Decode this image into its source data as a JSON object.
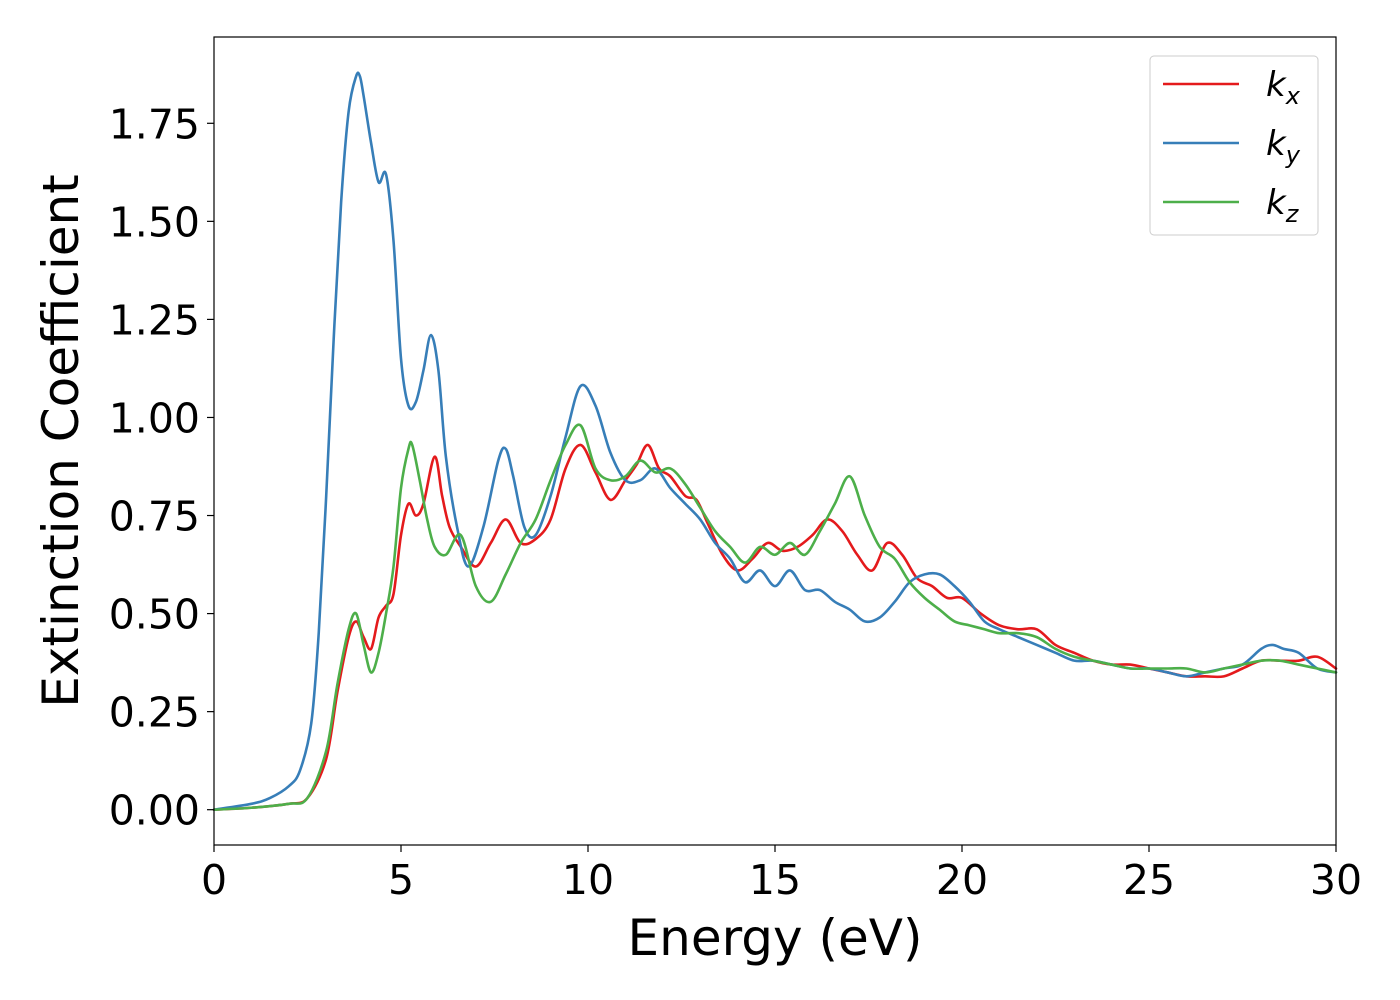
{
  "chart_data": {
    "type": "line",
    "title": "",
    "xlabel": "Energy (eV)",
    "ylabel": "Extinction Coefficient",
    "xlim": [
      0,
      30
    ],
    "ylim": [
      -0.09,
      1.97
    ],
    "xticks": [
      0,
      5,
      10,
      15,
      20,
      25,
      30
    ],
    "xtick_labels": [
      "0",
      "5",
      "10",
      "15",
      "20",
      "25",
      "30"
    ],
    "yticks": [
      0,
      0.25,
      0.5,
      0.75,
      1.0,
      1.25,
      1.5,
      1.75
    ],
    "ytick_labels": [
      "0.00",
      "0.25",
      "0.50",
      "0.75",
      "1.00",
      "1.25",
      "1.50",
      "1.75"
    ],
    "grid": false,
    "legend_position": "top-right",
    "series": [
      {
        "name": "k_x",
        "legend_base": "k",
        "legend_sub": "x",
        "color": "#e41a1c",
        "x": [
          0,
          1,
          2,
          2.5,
          3,
          3.3,
          3.6,
          3.8,
          4.0,
          4.2,
          4.4,
          4.6,
          4.8,
          5.0,
          5.2,
          5.4,
          5.6,
          5.9,
          6.1,
          6.3,
          6.6,
          7.0,
          7.4,
          7.8,
          8.2,
          8.6,
          9.0,
          9.4,
          9.8,
          10.2,
          10.6,
          11.0,
          11.3,
          11.6,
          11.9,
          12.2,
          12.6,
          12.9,
          13.2,
          13.6,
          14.0,
          14.4,
          14.8,
          15.2,
          15.6,
          16.0,
          16.4,
          16.8,
          17.2,
          17.6,
          18.0,
          18.4,
          18.8,
          19.2,
          19.6,
          20.0,
          20.5,
          21.0,
          21.5,
          22.0,
          22.5,
          23.0,
          23.5,
          24.0,
          24.5,
          25.0,
          25.5,
          26.0,
          26.5,
          27.0,
          27.5,
          28.0,
          28.5,
          29.0,
          29.5,
          30.0
        ],
        "y": [
          0,
          0.005,
          0.015,
          0.03,
          0.13,
          0.3,
          0.44,
          0.48,
          0.44,
          0.41,
          0.49,
          0.52,
          0.55,
          0.7,
          0.78,
          0.75,
          0.78,
          0.9,
          0.8,
          0.72,
          0.67,
          0.62,
          0.68,
          0.74,
          0.68,
          0.69,
          0.74,
          0.87,
          0.93,
          0.86,
          0.79,
          0.84,
          0.88,
          0.93,
          0.87,
          0.85,
          0.8,
          0.79,
          0.73,
          0.65,
          0.61,
          0.64,
          0.68,
          0.66,
          0.67,
          0.7,
          0.74,
          0.71,
          0.65,
          0.61,
          0.68,
          0.65,
          0.59,
          0.57,
          0.54,
          0.54,
          0.5,
          0.47,
          0.46,
          0.46,
          0.42,
          0.4,
          0.38,
          0.37,
          0.37,
          0.36,
          0.35,
          0.34,
          0.34,
          0.34,
          0.36,
          0.38,
          0.38,
          0.38,
          0.39,
          0.36
        ]
      },
      {
        "name": "k_y",
        "legend_base": "k",
        "legend_sub": "y",
        "color": "#377eb8",
        "x": [
          0,
          1,
          1.5,
          2,
          2.3,
          2.6,
          2.8,
          3.0,
          3.2,
          3.4,
          3.6,
          3.8,
          3.9,
          4.0,
          4.2,
          4.4,
          4.6,
          4.8,
          5.0,
          5.2,
          5.4,
          5.6,
          5.8,
          6.0,
          6.2,
          6.5,
          6.8,
          7.2,
          7.6,
          7.8,
          8.0,
          8.3,
          8.6,
          9.0,
          9.4,
          9.8,
          10.2,
          10.6,
          11.0,
          11.4,
          11.8,
          12.2,
          12.6,
          13.0,
          13.4,
          13.8,
          14.2,
          14.6,
          15.0,
          15.4,
          15.8,
          16.2,
          16.6,
          17.0,
          17.4,
          17.8,
          18.2,
          18.6,
          19.0,
          19.4,
          19.8,
          20.2,
          20.6,
          21.0,
          21.5,
          22.0,
          22.5,
          23.0,
          23.5,
          24.0,
          24.5,
          25.0,
          25.5,
          26.0,
          26.5,
          27.0,
          27.5,
          28.0,
          28.3,
          28.6,
          29.0,
          29.5,
          30.0
        ],
        "y": [
          0,
          0.015,
          0.03,
          0.06,
          0.1,
          0.22,
          0.45,
          0.8,
          1.2,
          1.55,
          1.78,
          1.87,
          1.87,
          1.82,
          1.7,
          1.6,
          1.62,
          1.45,
          1.15,
          1.03,
          1.04,
          1.12,
          1.21,
          1.12,
          0.9,
          0.72,
          0.62,
          0.72,
          0.89,
          0.92,
          0.85,
          0.72,
          0.7,
          0.8,
          0.95,
          1.08,
          1.03,
          0.91,
          0.84,
          0.84,
          0.87,
          0.82,
          0.78,
          0.74,
          0.68,
          0.64,
          0.58,
          0.61,
          0.57,
          0.61,
          0.56,
          0.56,
          0.53,
          0.51,
          0.48,
          0.49,
          0.53,
          0.58,
          0.6,
          0.6,
          0.57,
          0.53,
          0.48,
          0.46,
          0.44,
          0.42,
          0.4,
          0.38,
          0.38,
          0.37,
          0.36,
          0.36,
          0.35,
          0.34,
          0.35,
          0.36,
          0.37,
          0.41,
          0.42,
          0.41,
          0.4,
          0.36,
          0.35
        ]
      },
      {
        "name": "k_z",
        "legend_base": "k",
        "legend_sub": "z",
        "color": "#4daf4a",
        "x": [
          0,
          1,
          2,
          2.5,
          3,
          3.3,
          3.6,
          3.8,
          4.0,
          4.2,
          4.4,
          4.6,
          4.8,
          5.0,
          5.2,
          5.3,
          5.5,
          5.7,
          5.9,
          6.2,
          6.6,
          7.0,
          7.4,
          7.8,
          8.2,
          8.6,
          9.0,
          9.4,
          9.8,
          10.2,
          10.6,
          11.0,
          11.4,
          11.8,
          12.2,
          12.6,
          13.0,
          13.4,
          13.8,
          14.2,
          14.6,
          15.0,
          15.4,
          15.8,
          16.2,
          16.6,
          17.0,
          17.4,
          17.8,
          18.2,
          18.6,
          19.0,
          19.4,
          19.8,
          20.2,
          20.6,
          21.0,
          21.5,
          22.0,
          22.5,
          23.0,
          23.5,
          24.0,
          24.5,
          25.0,
          25.5,
          26.0,
          26.5,
          27.0,
          27.5,
          28.0,
          28.5,
          29.0,
          29.5,
          30.0
        ],
        "y": [
          0,
          0.005,
          0.015,
          0.03,
          0.15,
          0.32,
          0.46,
          0.5,
          0.42,
          0.35,
          0.4,
          0.5,
          0.62,
          0.82,
          0.92,
          0.93,
          0.84,
          0.74,
          0.67,
          0.65,
          0.7,
          0.57,
          0.53,
          0.6,
          0.68,
          0.74,
          0.84,
          0.93,
          0.98,
          0.87,
          0.84,
          0.85,
          0.89,
          0.86,
          0.87,
          0.83,
          0.77,
          0.71,
          0.67,
          0.63,
          0.67,
          0.65,
          0.68,
          0.65,
          0.71,
          0.78,
          0.85,
          0.75,
          0.67,
          0.64,
          0.58,
          0.54,
          0.51,
          0.48,
          0.47,
          0.46,
          0.45,
          0.45,
          0.44,
          0.41,
          0.39,
          0.38,
          0.37,
          0.36,
          0.36,
          0.36,
          0.36,
          0.35,
          0.36,
          0.37,
          0.38,
          0.38,
          0.37,
          0.36,
          0.35
        ]
      }
    ]
  }
}
